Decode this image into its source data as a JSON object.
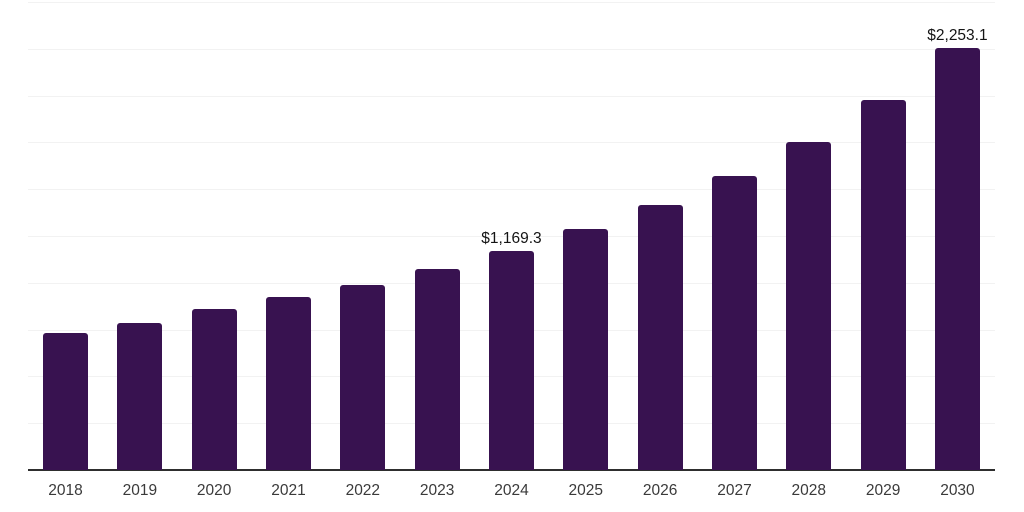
{
  "chart_data": {
    "type": "bar",
    "title": "",
    "xlabel": "",
    "ylabel": "",
    "categories": [
      "2018",
      "2019",
      "2020",
      "2021",
      "2022",
      "2023",
      "2024",
      "2025",
      "2026",
      "2027",
      "2028",
      "2029",
      "2030"
    ],
    "values": [
      732,
      788,
      858,
      925,
      988,
      1073,
      1169.3,
      1285,
      1418,
      1570,
      1751,
      1979,
      2253.1
    ],
    "data_labels": [
      "",
      "",
      "",
      "",
      "",
      "",
      "$1,169.3",
      "",
      "",
      "",
      "",
      "",
      "$2,253.1"
    ],
    "ylim": [
      0,
      2500
    ],
    "gridline_step": 250,
    "gridline_count": 11,
    "grid": "horizontal-only",
    "y_tick_labels_visible": false,
    "legend": "none",
    "colors": {
      "bar": "#381250",
      "gridline": "#f2f2f2",
      "axis_line": "#2e2e2e",
      "tick_label": "#3a3a3a",
      "data_label": "#141414",
      "background": "#ffffff"
    }
  }
}
